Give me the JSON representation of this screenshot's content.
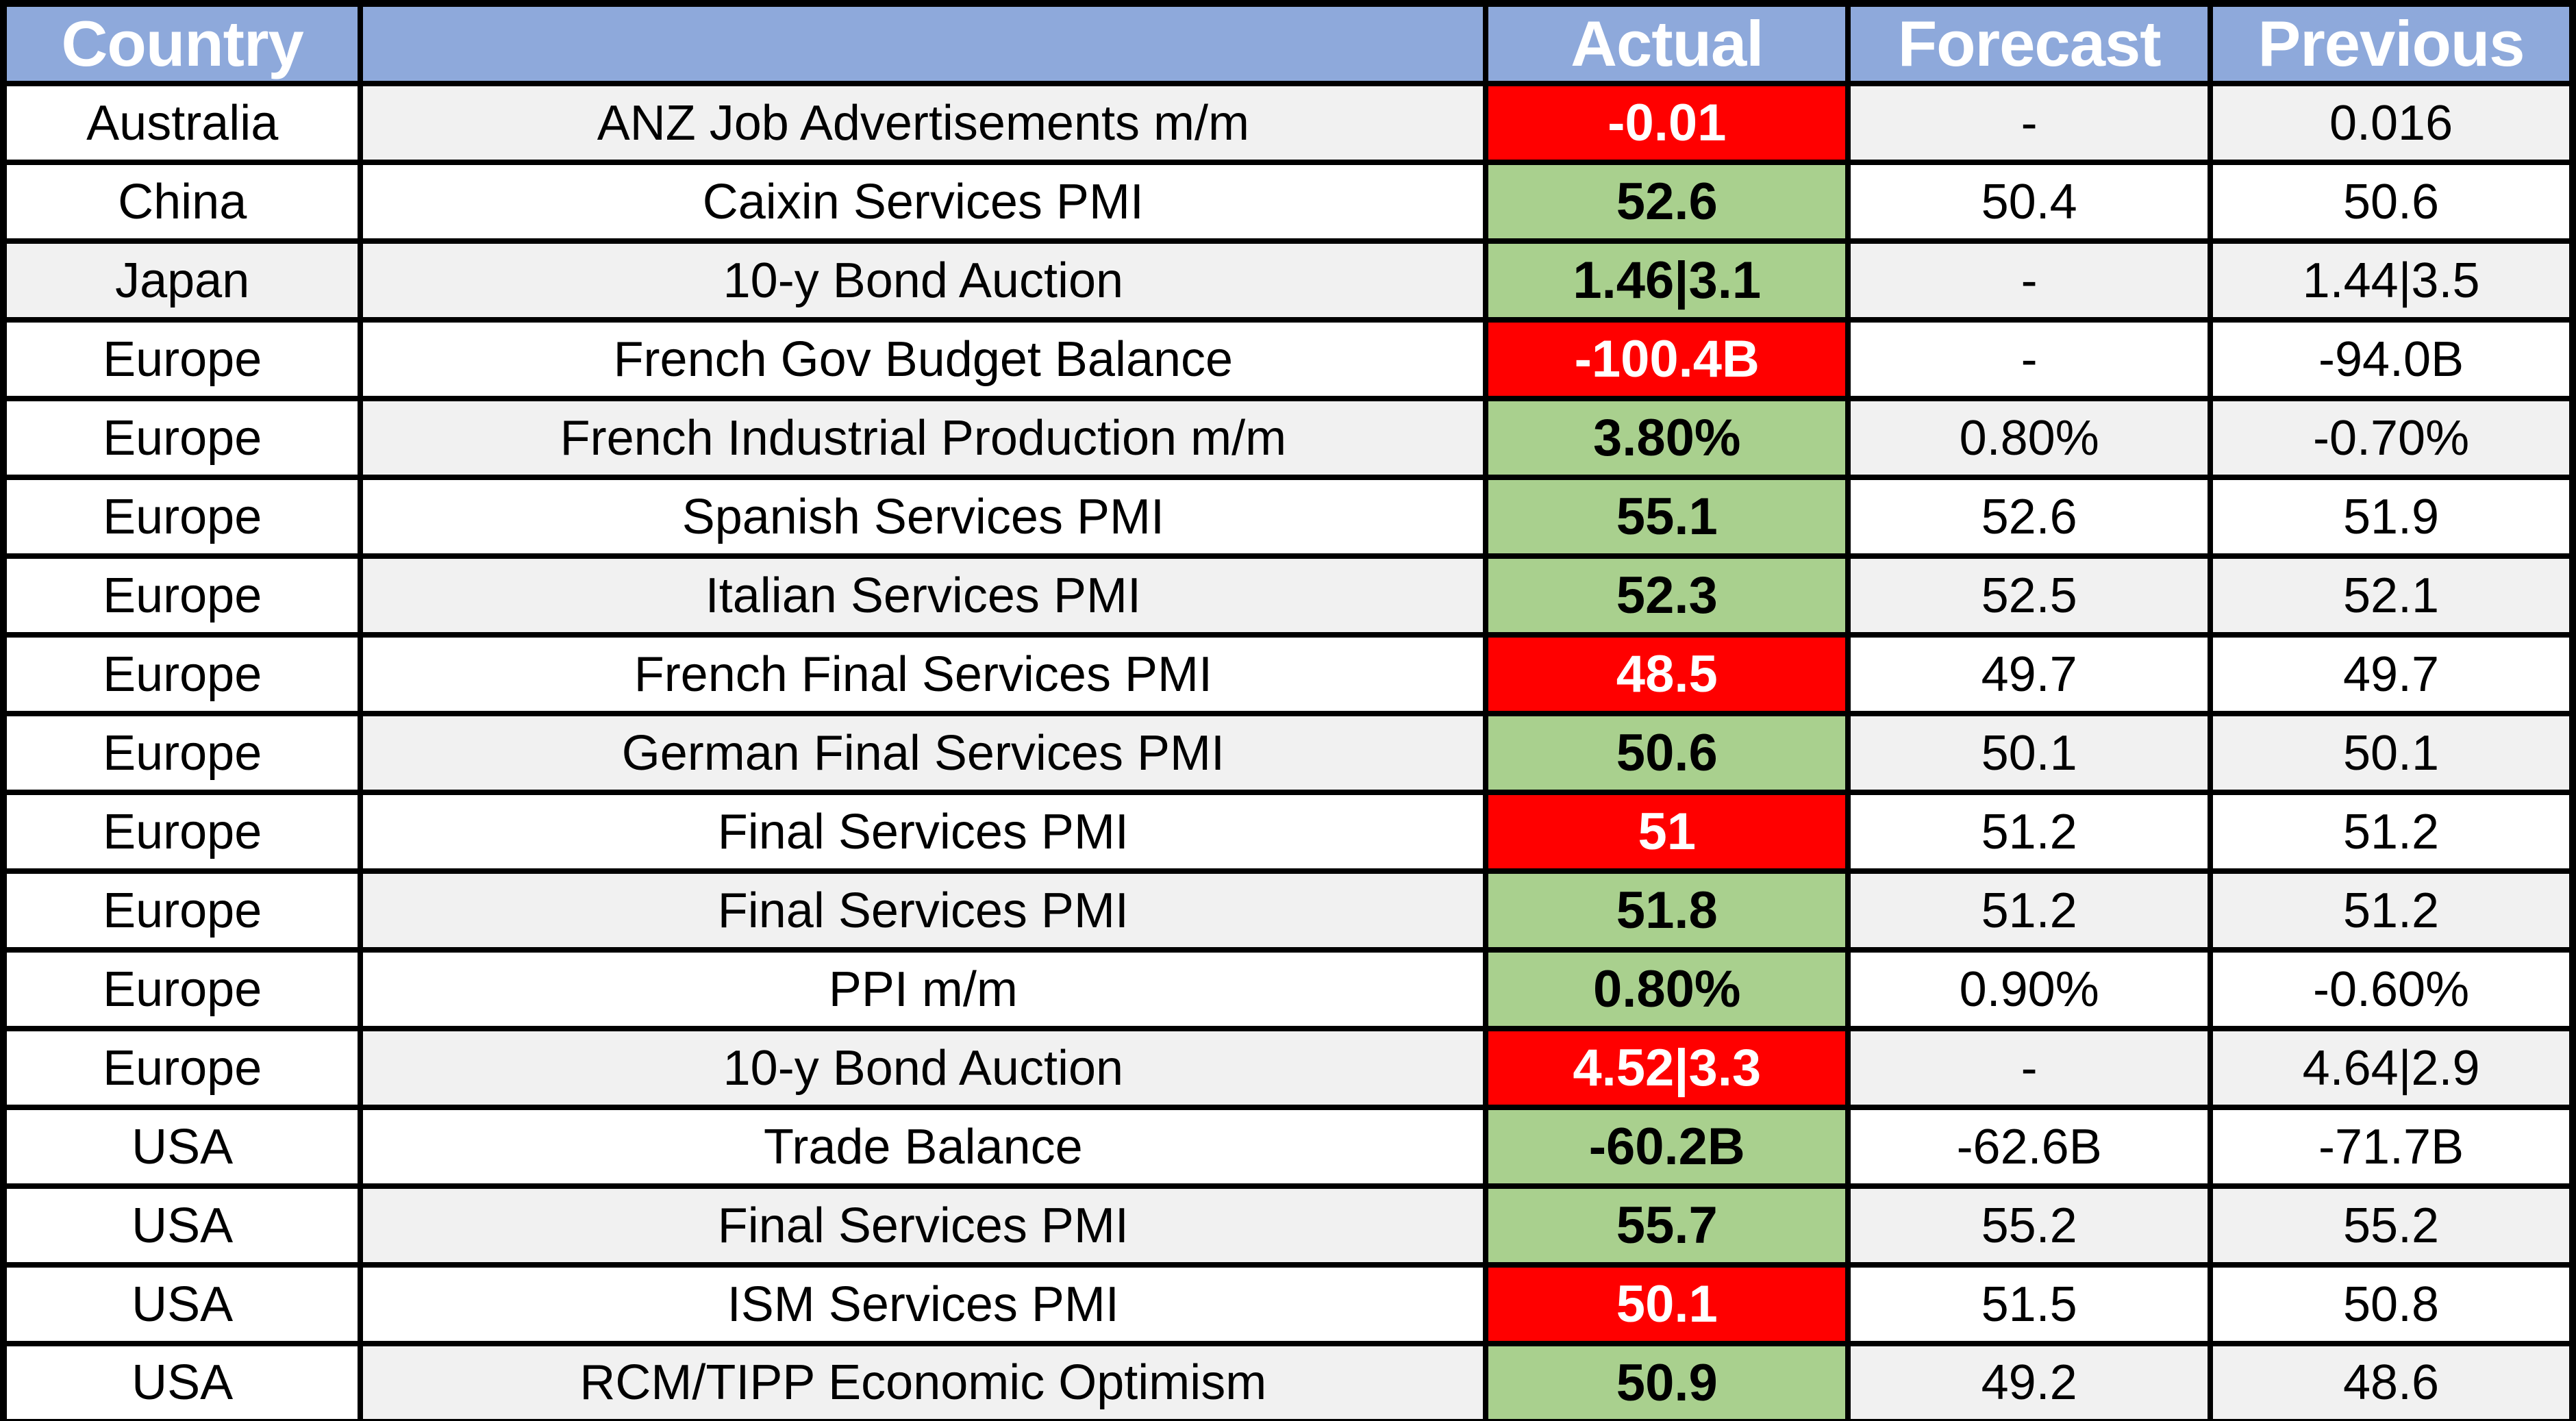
{
  "table": {
    "headers": {
      "country": "Country",
      "event": "",
      "actual": "Actual",
      "forecast": "Forecast",
      "previous": "Previous"
    },
    "colors": {
      "header_bg": "#8EA9DB",
      "header_text": "#FFFFFF",
      "green": "#A9D08E",
      "red": "#FF0000",
      "stripe": "#F1F1F1",
      "white": "#FFFFFF",
      "border": "#000000",
      "text": "#000000"
    },
    "rows": [
      {
        "country": "Australia",
        "event": "ANZ Job Advertisements m/m",
        "actual": "-0.01",
        "actual_color": "red",
        "forecast": "-",
        "forecast_dash": true,
        "previous": "0.016",
        "shaded": true,
        "country_shaded": false
      },
      {
        "country": "China",
        "event": "Caixin Services PMI",
        "actual": "52.6",
        "actual_color": "green",
        "forecast": "50.4",
        "forecast_dash": false,
        "previous": "50.6",
        "shaded": false,
        "country_shaded": false
      },
      {
        "country": "Japan",
        "event": "10-y Bond Auction",
        "actual": "1.46|3.1",
        "actual_color": "green",
        "forecast": "-",
        "forecast_dash": true,
        "previous": "1.44|3.5",
        "shaded": true,
        "country_shaded": true
      },
      {
        "country": "Europe",
        "event": "French Gov Budget Balance",
        "actual": "-100.4B",
        "actual_color": "red",
        "forecast": "-",
        "forecast_dash": true,
        "previous": "-94.0B",
        "shaded": false,
        "country_shaded": false
      },
      {
        "country": "Europe",
        "event": "French Industrial Production m/m",
        "actual": "3.80%",
        "actual_color": "green",
        "forecast": "0.80%",
        "forecast_dash": false,
        "previous": "-0.70%",
        "shaded": true,
        "country_shaded": false
      },
      {
        "country": "Europe",
        "event": "Spanish Services PMI",
        "actual": "55.1",
        "actual_color": "green",
        "forecast": "52.6",
        "forecast_dash": false,
        "previous": "51.9",
        "shaded": false,
        "country_shaded": false
      },
      {
        "country": "Europe",
        "event": "Italian Services PMI",
        "actual": "52.3",
        "actual_color": "green",
        "forecast": "52.5",
        "forecast_dash": false,
        "previous": "52.1",
        "shaded": true,
        "country_shaded": false
      },
      {
        "country": "Europe",
        "event": "French Final Services PMI",
        "actual": "48.5",
        "actual_color": "red",
        "forecast": "49.7",
        "forecast_dash": false,
        "previous": "49.7",
        "shaded": false,
        "country_shaded": false
      },
      {
        "country": "Europe",
        "event": "German Final Services PMI",
        "actual": "50.6",
        "actual_color": "green",
        "forecast": "50.1",
        "forecast_dash": false,
        "previous": "50.1",
        "shaded": true,
        "country_shaded": false
      },
      {
        "country": "Europe",
        "event": "Final Services PMI",
        "actual": "51",
        "actual_color": "red",
        "forecast": "51.2",
        "forecast_dash": false,
        "previous": "51.2",
        "shaded": false,
        "country_shaded": false
      },
      {
        "country": "Europe",
        "event": "Final Services PMI",
        "actual": "51.8",
        "actual_color": "green",
        "forecast": "51.2",
        "forecast_dash": false,
        "previous": "51.2",
        "shaded": true,
        "country_shaded": false
      },
      {
        "country": "Europe",
        "event": "PPI m/m",
        "actual": "0.80%",
        "actual_color": "green",
        "forecast": "0.90%",
        "forecast_dash": false,
        "previous": "-0.60%",
        "shaded": false,
        "country_shaded": false
      },
      {
        "country": "Europe",
        "event": "10-y Bond Auction",
        "actual": "4.52|3.3",
        "actual_color": "red",
        "forecast": "-",
        "forecast_dash": true,
        "previous": "4.64|2.9",
        "shaded": true,
        "country_shaded": false
      },
      {
        "country": "USA",
        "event": "Trade Balance",
        "actual": "-60.2B",
        "actual_color": "green",
        "forecast": "-62.6B",
        "forecast_dash": false,
        "previous": "-71.7B",
        "shaded": false,
        "country_shaded": false
      },
      {
        "country": "USA",
        "event": "Final Services PMI",
        "actual": "55.7",
        "actual_color": "green",
        "forecast": "55.2",
        "forecast_dash": false,
        "previous": "55.2",
        "shaded": true,
        "country_shaded": false
      },
      {
        "country": "USA",
        "event": "ISM Services PMI",
        "actual": "50.1",
        "actual_color": "red",
        "forecast": "51.5",
        "forecast_dash": false,
        "previous": "50.8",
        "shaded": false,
        "country_shaded": false
      },
      {
        "country": "USA",
        "event": "RCM/TIPP Economic Optimism",
        "actual": "50.9",
        "actual_color": "green",
        "forecast": "49.2",
        "forecast_dash": false,
        "previous": "48.6",
        "shaded": true,
        "country_shaded": false
      }
    ]
  }
}
